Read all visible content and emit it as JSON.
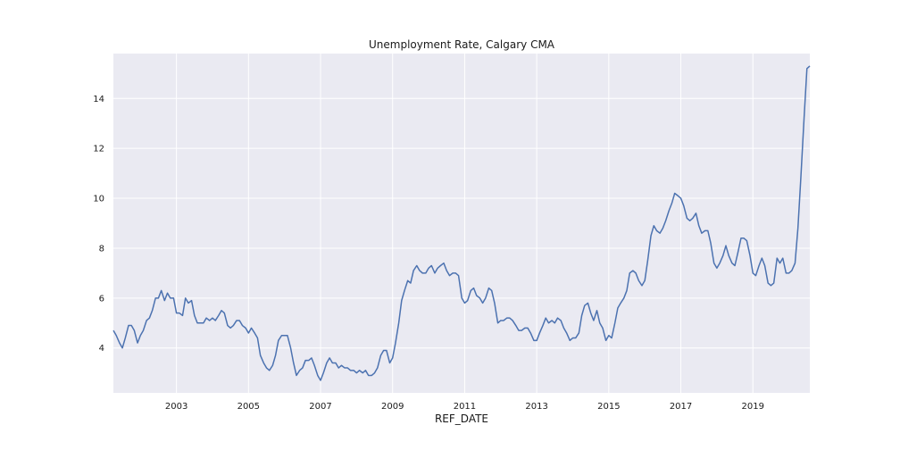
{
  "chart_data": {
    "type": "line",
    "title": "Unemployment Rate, Calgary CMA",
    "xlabel": "REF_DATE",
    "ylabel": "",
    "xlim": [
      2001.25,
      2020.58
    ],
    "ylim": [
      2.2,
      15.8
    ],
    "grid": true,
    "x_ticks": [
      2003,
      2005,
      2007,
      2009,
      2011,
      2013,
      2015,
      2017,
      2019
    ],
    "y_ticks": [
      4,
      6,
      8,
      10,
      12,
      14
    ],
    "x_tick_labels": [
      "2003",
      "2005",
      "2007",
      "2009",
      "2011",
      "2013",
      "2015",
      "2017",
      "2019"
    ],
    "y_tick_labels": [
      "4",
      "6",
      "8",
      "10",
      "12",
      "14"
    ],
    "colors": {
      "background": "#eaeaf2",
      "grid": "#ffffff",
      "line": "#4c72b0"
    },
    "series": [
      {
        "points": [
          [
            2001.25,
            4.7
          ],
          [
            2001.33,
            4.5
          ],
          [
            2001.42,
            4.2
          ],
          [
            2001.5,
            4.0
          ],
          [
            2001.58,
            4.4
          ],
          [
            2001.67,
            4.9
          ],
          [
            2001.75,
            4.9
          ],
          [
            2001.83,
            4.7
          ],
          [
            2001.92,
            4.2
          ],
          [
            2002.0,
            4.5
          ],
          [
            2002.08,
            4.7
          ],
          [
            2002.17,
            5.1
          ],
          [
            2002.25,
            5.2
          ],
          [
            2002.33,
            5.5
          ],
          [
            2002.42,
            6.0
          ],
          [
            2002.5,
            6.0
          ],
          [
            2002.58,
            6.3
          ],
          [
            2002.67,
            5.9
          ],
          [
            2002.75,
            6.2
          ],
          [
            2002.83,
            6.0
          ],
          [
            2002.92,
            6.0
          ],
          [
            2003.0,
            5.4
          ],
          [
            2003.08,
            5.4
          ],
          [
            2003.17,
            5.3
          ],
          [
            2003.25,
            6.0
          ],
          [
            2003.33,
            5.8
          ],
          [
            2003.42,
            5.9
          ],
          [
            2003.5,
            5.3
          ],
          [
            2003.58,
            5.0
          ],
          [
            2003.67,
            5.0
          ],
          [
            2003.75,
            5.0
          ],
          [
            2003.83,
            5.2
          ],
          [
            2003.92,
            5.1
          ],
          [
            2004.0,
            5.2
          ],
          [
            2004.08,
            5.1
          ],
          [
            2004.17,
            5.3
          ],
          [
            2004.25,
            5.5
          ],
          [
            2004.33,
            5.4
          ],
          [
            2004.42,
            4.9
          ],
          [
            2004.5,
            4.8
          ],
          [
            2004.58,
            4.9
          ],
          [
            2004.67,
            5.1
          ],
          [
            2004.75,
            5.1
          ],
          [
            2004.83,
            4.9
          ],
          [
            2004.92,
            4.8
          ],
          [
            2005.0,
            4.6
          ],
          [
            2005.08,
            4.8
          ],
          [
            2005.17,
            4.6
          ],
          [
            2005.25,
            4.4
          ],
          [
            2005.33,
            3.7
          ],
          [
            2005.42,
            3.4
          ],
          [
            2005.5,
            3.2
          ],
          [
            2005.58,
            3.1
          ],
          [
            2005.67,
            3.3
          ],
          [
            2005.75,
            3.7
          ],
          [
            2005.83,
            4.3
          ],
          [
            2005.92,
            4.5
          ],
          [
            2006.0,
            4.5
          ],
          [
            2006.08,
            4.5
          ],
          [
            2006.17,
            4.0
          ],
          [
            2006.25,
            3.4
          ],
          [
            2006.33,
            2.9
          ],
          [
            2006.42,
            3.1
          ],
          [
            2006.5,
            3.2
          ],
          [
            2006.58,
            3.5
          ],
          [
            2006.67,
            3.5
          ],
          [
            2006.75,
            3.6
          ],
          [
            2006.83,
            3.3
          ],
          [
            2006.92,
            2.9
          ],
          [
            2007.0,
            2.7
          ],
          [
            2007.08,
            3.0
          ],
          [
            2007.17,
            3.4
          ],
          [
            2007.25,
            3.6
          ],
          [
            2007.33,
            3.4
          ],
          [
            2007.42,
            3.4
          ],
          [
            2007.5,
            3.2
          ],
          [
            2007.58,
            3.3
          ],
          [
            2007.67,
            3.2
          ],
          [
            2007.75,
            3.2
          ],
          [
            2007.83,
            3.1
          ],
          [
            2007.92,
            3.1
          ],
          [
            2008.0,
            3.0
          ],
          [
            2008.08,
            3.1
          ],
          [
            2008.17,
            3.0
          ],
          [
            2008.25,
            3.1
          ],
          [
            2008.33,
            2.9
          ],
          [
            2008.42,
            2.9
          ],
          [
            2008.5,
            3.0
          ],
          [
            2008.58,
            3.2
          ],
          [
            2008.67,
            3.7
          ],
          [
            2008.75,
            3.9
          ],
          [
            2008.83,
            3.9
          ],
          [
            2008.92,
            3.4
          ],
          [
            2009.0,
            3.6
          ],
          [
            2009.08,
            4.2
          ],
          [
            2009.17,
            5.0
          ],
          [
            2009.25,
            5.9
          ],
          [
            2009.33,
            6.3
          ],
          [
            2009.42,
            6.7
          ],
          [
            2009.5,
            6.6
          ],
          [
            2009.58,
            7.1
          ],
          [
            2009.67,
            7.3
          ],
          [
            2009.75,
            7.1
          ],
          [
            2009.83,
            7.0
          ],
          [
            2009.92,
            7.0
          ],
          [
            2010.0,
            7.2
          ],
          [
            2010.08,
            7.3
          ],
          [
            2010.17,
            7.0
          ],
          [
            2010.25,
            7.2
          ],
          [
            2010.33,
            7.3
          ],
          [
            2010.42,
            7.4
          ],
          [
            2010.5,
            7.1
          ],
          [
            2010.58,
            6.9
          ],
          [
            2010.67,
            7.0
          ],
          [
            2010.75,
            7.0
          ],
          [
            2010.83,
            6.9
          ],
          [
            2010.92,
            6.0
          ],
          [
            2011.0,
            5.8
          ],
          [
            2011.08,
            5.9
          ],
          [
            2011.17,
            6.3
          ],
          [
            2011.25,
            6.4
          ],
          [
            2011.33,
            6.1
          ],
          [
            2011.42,
            6.0
          ],
          [
            2011.5,
            5.8
          ],
          [
            2011.58,
            6.0
          ],
          [
            2011.67,
            6.4
          ],
          [
            2011.75,
            6.3
          ],
          [
            2011.83,
            5.8
          ],
          [
            2011.92,
            5.0
          ],
          [
            2012.0,
            5.1
          ],
          [
            2012.08,
            5.1
          ],
          [
            2012.17,
            5.2
          ],
          [
            2012.25,
            5.2
          ],
          [
            2012.33,
            5.1
          ],
          [
            2012.42,
            4.9
          ],
          [
            2012.5,
            4.7
          ],
          [
            2012.58,
            4.7
          ],
          [
            2012.67,
            4.8
          ],
          [
            2012.75,
            4.8
          ],
          [
            2012.83,
            4.6
          ],
          [
            2012.92,
            4.3
          ],
          [
            2013.0,
            4.3
          ],
          [
            2013.08,
            4.6
          ],
          [
            2013.17,
            4.9
          ],
          [
            2013.25,
            5.2
          ],
          [
            2013.33,
            5.0
          ],
          [
            2013.42,
            5.1
          ],
          [
            2013.5,
            5.0
          ],
          [
            2013.58,
            5.2
          ],
          [
            2013.67,
            5.1
          ],
          [
            2013.75,
            4.8
          ],
          [
            2013.83,
            4.6
          ],
          [
            2013.92,
            4.3
          ],
          [
            2014.0,
            4.4
          ],
          [
            2014.08,
            4.4
          ],
          [
            2014.17,
            4.6
          ],
          [
            2014.25,
            5.3
          ],
          [
            2014.33,
            5.7
          ],
          [
            2014.42,
            5.8
          ],
          [
            2014.5,
            5.4
          ],
          [
            2014.58,
            5.1
          ],
          [
            2014.67,
            5.5
          ],
          [
            2014.75,
            5.0
          ],
          [
            2014.83,
            4.8
          ],
          [
            2014.92,
            4.3
          ],
          [
            2015.0,
            4.5
          ],
          [
            2015.08,
            4.4
          ],
          [
            2015.17,
            5.0
          ],
          [
            2015.25,
            5.6
          ],
          [
            2015.33,
            5.8
          ],
          [
            2015.42,
            6.0
          ],
          [
            2015.5,
            6.3
          ],
          [
            2015.58,
            7.0
          ],
          [
            2015.67,
            7.1
          ],
          [
            2015.75,
            7.0
          ],
          [
            2015.83,
            6.7
          ],
          [
            2015.92,
            6.5
          ],
          [
            2016.0,
            6.7
          ],
          [
            2016.08,
            7.5
          ],
          [
            2016.17,
            8.5
          ],
          [
            2016.25,
            8.9
          ],
          [
            2016.33,
            8.7
          ],
          [
            2016.42,
            8.6
          ],
          [
            2016.5,
            8.8
          ],
          [
            2016.58,
            9.1
          ],
          [
            2016.67,
            9.5
          ],
          [
            2016.75,
            9.8
          ],
          [
            2016.83,
            10.2
          ],
          [
            2016.92,
            10.1
          ],
          [
            2017.0,
            10.0
          ],
          [
            2017.08,
            9.7
          ],
          [
            2017.17,
            9.2
          ],
          [
            2017.25,
            9.1
          ],
          [
            2017.33,
            9.2
          ],
          [
            2017.42,
            9.4
          ],
          [
            2017.5,
            8.9
          ],
          [
            2017.58,
            8.6
          ],
          [
            2017.67,
            8.7
          ],
          [
            2017.75,
            8.7
          ],
          [
            2017.83,
            8.2
          ],
          [
            2017.92,
            7.4
          ],
          [
            2018.0,
            7.2
          ],
          [
            2018.08,
            7.4
          ],
          [
            2018.17,
            7.7
          ],
          [
            2018.25,
            8.1
          ],
          [
            2018.33,
            7.7
          ],
          [
            2018.42,
            7.4
          ],
          [
            2018.5,
            7.3
          ],
          [
            2018.58,
            7.8
          ],
          [
            2018.67,
            8.4
          ],
          [
            2018.75,
            8.4
          ],
          [
            2018.83,
            8.3
          ],
          [
            2018.92,
            7.7
          ],
          [
            2019.0,
            7.0
          ],
          [
            2019.08,
            6.9
          ],
          [
            2019.17,
            7.3
          ],
          [
            2019.25,
            7.6
          ],
          [
            2019.33,
            7.3
          ],
          [
            2019.42,
            6.6
          ],
          [
            2019.5,
            6.5
          ],
          [
            2019.58,
            6.6
          ],
          [
            2019.67,
            7.6
          ],
          [
            2019.75,
            7.4
          ],
          [
            2019.83,
            7.6
          ],
          [
            2019.92,
            7.0
          ],
          [
            2020.0,
            7.0
          ],
          [
            2020.08,
            7.1
          ],
          [
            2020.17,
            7.4
          ],
          [
            2020.25,
            8.8
          ],
          [
            2020.33,
            10.8
          ],
          [
            2020.42,
            13.2
          ],
          [
            2020.5,
            15.2
          ],
          [
            2020.58,
            15.3
          ]
        ]
      }
    ]
  }
}
